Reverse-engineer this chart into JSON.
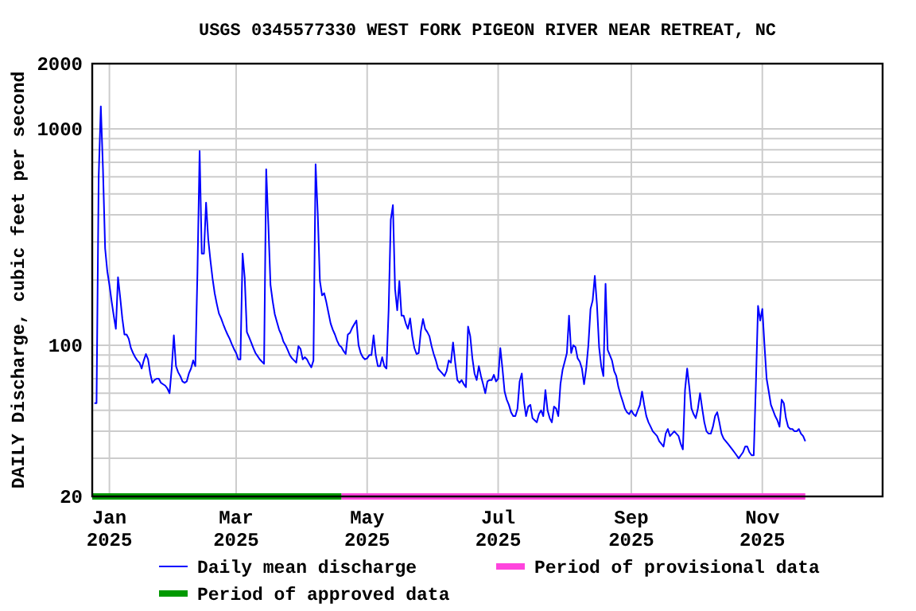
{
  "chart_data": {
    "type": "line",
    "title": "USGS 0345577330 WEST FORK PIGEON RIVER NEAR RETREAT, NC",
    "ylabel": "DAILY Discharge, cubic feet per second",
    "log": "y",
    "grid": true,
    "legend": "bottom",
    "xlim": [
      "2024-12-24",
      "2025-12-27"
    ],
    "ylim": [
      20,
      2000
    ],
    "xticks": [
      {
        "value": "2025-01-01",
        "label": "Jan 2025"
      },
      {
        "value": "2025-03-01",
        "label": "Mar 2025"
      },
      {
        "value": "2025-05-01",
        "label": "May 2025"
      },
      {
        "value": "2025-07-01",
        "label": "Jul 2025"
      },
      {
        "value": "2025-09-01",
        "label": "Sep 2025"
      },
      {
        "value": "2025-11-01",
        "label": "Nov 2025"
      }
    ],
    "yticks": [
      20,
      {
        "value": 30,
        "label": null
      },
      {
        "value": 40,
        "label": null
      },
      {
        "value": 50,
        "label": null
      },
      {
        "value": 60,
        "label": null
      },
      {
        "value": 70,
        "label": null
      },
      {
        "value": 80,
        "label": null
      },
      {
        "value": 90,
        "label": null
      },
      100,
      {
        "value": 200,
        "label": null
      },
      {
        "value": 300,
        "label": null
      },
      {
        "value": 400,
        "label": null
      },
      {
        "value": 500,
        "label": null
      },
      {
        "value": 600,
        "label": null
      },
      {
        "value": 700,
        "label": null
      },
      {
        "value": 800,
        "label": null
      },
      {
        "value": 900,
        "label": null
      },
      1000,
      2000
    ],
    "series": [
      {
        "name": "Period of provisional data",
        "color": "#ff44dd",
        "x": [
          "2025-04-19",
          "2025-11-21"
        ],
        "values": [
          20,
          20
        ]
      },
      {
        "name": "Period of approved data",
        "color": "#009900",
        "x": [
          "2024-12-24",
          "2025-04-19"
        ],
        "values": [
          20,
          20
        ]
      },
      {
        "name": "Daily mean discharge",
        "color": "#0000ff",
        "x": [
          "2024-12-25",
          "2024-12-26",
          "2024-12-27",
          "2024-12-28",
          "2024-12-29",
          "2024-12-30",
          "2024-12-31",
          "2025-01-01",
          "2025-01-02",
          "2025-01-03",
          "2025-01-04",
          "2025-01-05",
          "2025-01-06",
          "2025-01-07",
          "2025-01-08",
          "2025-01-09",
          "2025-01-10",
          "2025-01-11",
          "2025-01-12",
          "2025-01-13",
          "2025-01-14",
          "2025-01-15",
          "2025-01-16",
          "2025-01-17",
          "2025-01-18",
          "2025-01-19",
          "2025-01-20",
          "2025-01-21",
          "2025-01-22",
          "2025-01-23",
          "2025-01-24",
          "2025-01-25",
          "2025-01-26",
          "2025-01-27",
          "2025-01-28",
          "2025-01-29",
          "2025-01-30",
          "2025-01-31",
          "2025-02-01",
          "2025-02-02",
          "2025-02-03",
          "2025-02-04",
          "2025-02-05",
          "2025-02-06",
          "2025-02-07",
          "2025-02-08",
          "2025-02-09",
          "2025-02-10",
          "2025-02-11",
          "2025-02-12",
          "2025-02-13",
          "2025-02-14",
          "2025-02-15",
          "2025-02-16",
          "2025-02-17",
          "2025-02-18",
          "2025-02-19",
          "2025-02-20",
          "2025-02-21",
          "2025-02-22",
          "2025-02-23",
          "2025-02-24",
          "2025-02-25",
          "2025-02-26",
          "2025-02-27",
          "2025-02-28",
          "2025-03-01",
          "2025-03-02",
          "2025-03-03",
          "2025-03-04",
          "2025-03-05",
          "2025-03-06",
          "2025-03-07",
          "2025-03-08",
          "2025-03-09",
          "2025-03-10",
          "2025-03-11",
          "2025-03-12",
          "2025-03-13",
          "2025-03-14",
          "2025-03-15",
          "2025-03-16",
          "2025-03-17",
          "2025-03-18",
          "2025-03-19",
          "2025-03-20",
          "2025-03-21",
          "2025-03-22",
          "2025-03-23",
          "2025-03-24",
          "2025-03-25",
          "2025-03-26",
          "2025-03-27",
          "2025-03-28",
          "2025-03-29",
          "2025-03-30",
          "2025-03-31",
          "2025-04-01",
          "2025-04-02",
          "2025-04-03",
          "2025-04-04",
          "2025-04-05",
          "2025-04-06",
          "2025-04-07",
          "2025-04-08",
          "2025-04-09",
          "2025-04-10",
          "2025-04-11",
          "2025-04-12",
          "2025-04-13",
          "2025-04-14",
          "2025-04-15",
          "2025-04-16",
          "2025-04-17",
          "2025-04-18",
          "2025-04-19",
          "2025-04-20",
          "2025-04-21",
          "2025-04-22",
          "2025-04-23",
          "2025-04-24",
          "2025-04-25",
          "2025-04-26",
          "2025-04-27",
          "2025-04-28",
          "2025-04-29",
          "2025-04-30",
          "2025-05-01",
          "2025-05-02",
          "2025-05-03",
          "2025-05-04",
          "2025-05-05",
          "2025-05-06",
          "2025-05-07",
          "2025-05-08",
          "2025-05-09",
          "2025-05-10",
          "2025-05-11",
          "2025-05-12",
          "2025-05-13",
          "2025-05-14",
          "2025-05-15",
          "2025-05-16",
          "2025-05-17",
          "2025-05-18",
          "2025-05-19",
          "2025-05-20",
          "2025-05-21",
          "2025-05-22",
          "2025-05-23",
          "2025-05-24",
          "2025-05-25",
          "2025-05-26",
          "2025-05-27",
          "2025-05-28",
          "2025-05-29",
          "2025-05-30",
          "2025-05-31",
          "2025-06-01",
          "2025-06-02",
          "2025-06-03",
          "2025-06-04",
          "2025-06-05",
          "2025-06-06",
          "2025-06-07",
          "2025-06-08",
          "2025-06-09",
          "2025-06-10",
          "2025-06-11",
          "2025-06-12",
          "2025-06-13",
          "2025-06-14",
          "2025-06-15",
          "2025-06-16",
          "2025-06-17",
          "2025-06-18",
          "2025-06-19",
          "2025-06-20",
          "2025-06-21",
          "2025-06-22",
          "2025-06-23",
          "2025-06-24",
          "2025-06-25",
          "2025-06-26",
          "2025-06-27",
          "2025-06-28",
          "2025-06-29",
          "2025-06-30",
          "2025-07-01",
          "2025-07-02",
          "2025-07-03",
          "2025-07-04",
          "2025-07-05",
          "2025-07-06",
          "2025-07-07",
          "2025-07-08",
          "2025-07-09",
          "2025-07-10",
          "2025-07-11",
          "2025-07-12",
          "2025-07-13",
          "2025-07-14",
          "2025-07-15",
          "2025-07-16",
          "2025-07-17",
          "2025-07-18",
          "2025-07-19",
          "2025-07-20",
          "2025-07-21",
          "2025-07-22",
          "2025-07-23",
          "2025-07-24",
          "2025-07-25",
          "2025-07-26",
          "2025-07-27",
          "2025-07-28",
          "2025-07-29",
          "2025-07-30",
          "2025-07-31",
          "2025-08-01",
          "2025-08-02",
          "2025-08-03",
          "2025-08-04",
          "2025-08-05",
          "2025-08-06",
          "2025-08-07",
          "2025-08-08",
          "2025-08-09",
          "2025-08-10",
          "2025-08-11",
          "2025-08-12",
          "2025-08-13",
          "2025-08-14",
          "2025-08-15",
          "2025-08-16",
          "2025-08-17",
          "2025-08-18",
          "2025-08-19",
          "2025-08-20",
          "2025-08-21",
          "2025-08-22",
          "2025-08-23",
          "2025-08-24",
          "2025-08-25",
          "2025-08-26",
          "2025-08-27",
          "2025-08-28",
          "2025-08-29",
          "2025-08-30",
          "2025-08-31",
          "2025-09-01",
          "2025-09-02",
          "2025-09-03",
          "2025-09-04",
          "2025-09-05",
          "2025-09-06",
          "2025-09-07",
          "2025-09-08",
          "2025-09-09",
          "2025-09-10",
          "2025-09-11",
          "2025-09-12",
          "2025-09-13",
          "2025-09-14",
          "2025-09-15",
          "2025-09-16",
          "2025-09-17",
          "2025-09-18",
          "2025-09-19",
          "2025-09-20",
          "2025-09-21",
          "2025-09-22",
          "2025-09-23",
          "2025-09-24",
          "2025-09-25",
          "2025-09-26",
          "2025-09-27",
          "2025-09-28",
          "2025-09-29",
          "2025-09-30",
          "2025-10-01",
          "2025-10-02",
          "2025-10-03",
          "2025-10-04",
          "2025-10-05",
          "2025-10-06",
          "2025-10-07",
          "2025-10-08",
          "2025-10-09",
          "2025-10-10",
          "2025-10-11",
          "2025-10-12",
          "2025-10-13",
          "2025-10-14",
          "2025-10-15",
          "2025-10-16",
          "2025-10-17",
          "2025-10-18",
          "2025-10-19",
          "2025-10-20",
          "2025-10-21",
          "2025-10-22",
          "2025-10-23",
          "2025-10-24",
          "2025-10-25",
          "2025-10-26",
          "2025-10-27",
          "2025-10-28",
          "2025-10-29",
          "2025-10-30",
          "2025-10-31",
          "2025-11-01",
          "2025-11-02",
          "2025-11-03",
          "2025-11-04",
          "2025-11-05",
          "2025-11-06",
          "2025-11-07",
          "2025-11-08",
          "2025-11-09",
          "2025-11-10",
          "2025-11-11",
          "2025-11-12",
          "2025-11-13",
          "2025-11-14",
          "2025-11-15",
          "2025-11-16",
          "2025-11-17",
          "2025-11-18",
          "2025-11-19",
          "2025-11-20",
          "2025-11-21"
        ],
        "values": [
          54,
          54,
          600,
          1270,
          650,
          280,
          220,
          190,
          160,
          137,
          119,
          206,
          167,
          133,
          112,
          112,
          107,
          97,
          92,
          88,
          85,
          83,
          78,
          85,
          91,
          86,
          74,
          67,
          69,
          70,
          70,
          67,
          66,
          65,
          63,
          60,
          78,
          111,
          80,
          75,
          72,
          68,
          67,
          68,
          74,
          78,
          85,
          80,
          220,
          790,
          265,
          265,
          456,
          310,
          248,
          204,
          174,
          155,
          140,
          133,
          125,
          118,
          112,
          107,
          101,
          96,
          92,
          86,
          86,
          265,
          204,
          115,
          109,
          103,
          97,
          92,
          89,
          86,
          84,
          82,
          650,
          360,
          190,
          160,
          139,
          128,
          118,
          112,
          104,
          100,
          95,
          90,
          87,
          85,
          83,
          99,
          96,
          86,
          88,
          86,
          82,
          79,
          85,
          685,
          405,
          198,
          170,
          174,
          158,
          141,
          126,
          118,
          112,
          105,
          100,
          98,
          94,
          91,
          112,
          114,
          120,
          125,
          130,
          100,
          92,
          88,
          86,
          87,
          90,
          90,
          111,
          90,
          80,
          80,
          88,
          80,
          78,
          145,
          380,
          444,
          182,
          145,
          198,
          137,
          137,
          126,
          119,
          133,
          110,
          97,
          91,
          92,
          116,
          132,
          119,
          115,
          110,
          99,
          91,
          85,
          78,
          76,
          74,
          72,
          76,
          85,
          83,
          103,
          83,
          69,
          67,
          69,
          66,
          64,
          122,
          110,
          87,
          74,
          69,
          80,
          72,
          66,
          60,
          68,
          69,
          69,
          73,
          68,
          70,
          97,
          78,
          61,
          56,
          53,
          49,
          47,
          47,
          51,
          68,
          74,
          55,
          47,
          52,
          53,
          46,
          45,
          44,
          48,
          50,
          47,
          62,
          50,
          46,
          44,
          52,
          51,
          47,
          66,
          77,
          84,
          92,
          137,
          92,
          100,
          98,
          87,
          84,
          78,
          66,
          78,
          100,
          147,
          161,
          209,
          154,
          98,
          80,
          72,
          192,
          95,
          90,
          85,
          76,
          72,
          64,
          59,
          55,
          51,
          49,
          48,
          50,
          48,
          47,
          50,
          53,
          61,
          53,
          47,
          44,
          42,
          40,
          39,
          38,
          36,
          35,
          34,
          39,
          41,
          38,
          39,
          40,
          39,
          38,
          35,
          33,
          62,
          78,
          64,
          51,
          48,
          46,
          51,
          60,
          51,
          44,
          40,
          39,
          39,
          42,
          47,
          49,
          44,
          39,
          37,
          36,
          35,
          34,
          33,
          32,
          31,
          30,
          31,
          32,
          34,
          34,
          32,
          31,
          31,
          66,
          152,
          130,
          147,
          100,
          70,
          61,
          53,
          50,
          47,
          45,
          42,
          56,
          54,
          46,
          42,
          41,
          41,
          40,
          40,
          41,
          39,
          38,
          36
        ]
      }
    ]
  }
}
